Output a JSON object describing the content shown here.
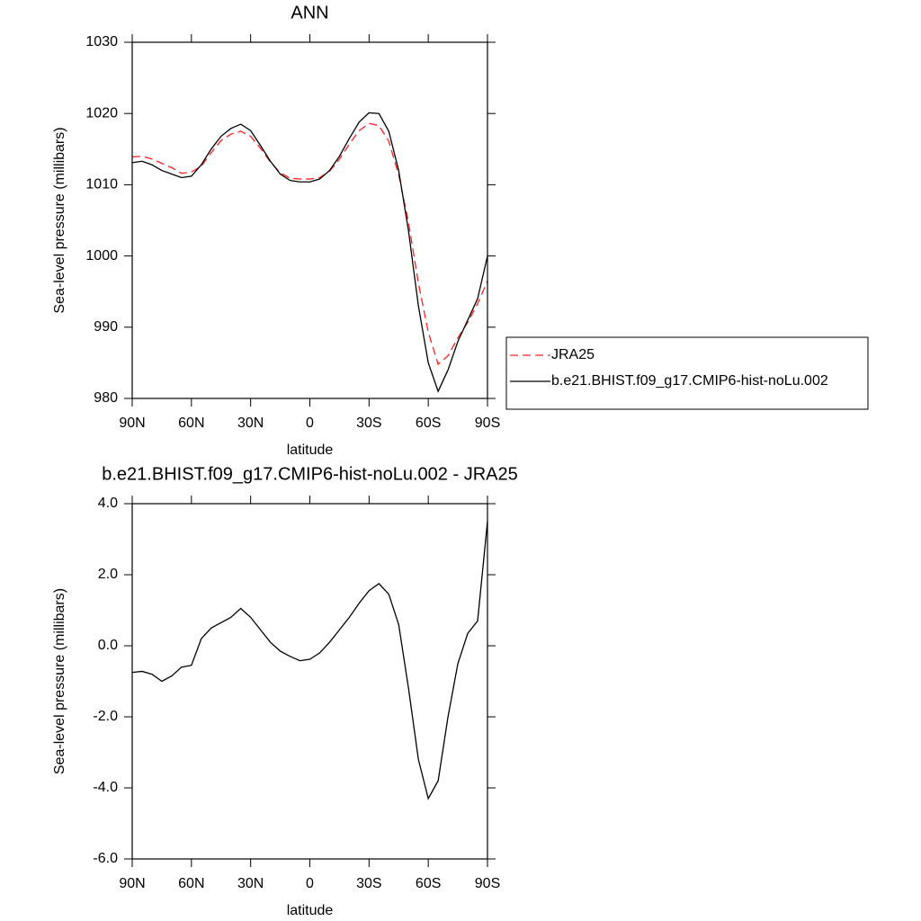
{
  "chart_data": [
    {
      "type": "line",
      "title": "ANN",
      "xlabel": "latitude",
      "ylabel": "Sea-level pressure (millibars)",
      "x": [
        90,
        85,
        80,
        75,
        70,
        65,
        60,
        55,
        50,
        45,
        40,
        35,
        30,
        25,
        20,
        15,
        10,
        5,
        0,
        -5,
        -10,
        -15,
        -20,
        -25,
        -30,
        -35,
        -40,
        -45,
        -50,
        -55,
        -60,
        -65,
        -70,
        -75,
        -80,
        -85,
        -90
      ],
      "xlim": [
        90,
        -90
      ],
      "xticks": [
        {
          "value": 90,
          "label": "90N"
        },
        {
          "value": 60,
          "label": "60N"
        },
        {
          "value": 30,
          "label": "30N"
        },
        0,
        {
          "value": -30,
          "label": "30S"
        },
        {
          "value": -60,
          "label": "60S"
        },
        {
          "value": -90,
          "label": "90S"
        }
      ],
      "ylim": [
        980,
        1030
      ],
      "yticks": [
        980,
        990,
        1000,
        1010,
        1020,
        1030
      ],
      "legend": "right",
      "series": [
        {
          "name": "JRA25",
          "color": "#ff2020",
          "dashed": true,
          "values": [
            1013.9,
            1014.0,
            1013.6,
            1013.0,
            1012.4,
            1011.6,
            1011.8,
            1012.6,
            1014.5,
            1016.2,
            1017.1,
            1017.5,
            1016.8,
            1015.1,
            1013.2,
            1011.7,
            1010.9,
            1010.8,
            1010.8,
            1011.0,
            1011.9,
            1013.6,
            1015.7,
            1017.6,
            1018.6,
            1018.3,
            1016.1,
            1011.4,
            1004.7,
            996.2,
            989.3,
            984.8,
            986.0,
            988.5,
            990.7,
            993.3,
            996.5
          ]
        },
        {
          "name": "b.e21.BHIST.f09_g17.CMIP6-hist-noLu.002",
          "color": "#000000",
          "dashed": false,
          "values": [
            1013.1,
            1013.3,
            1012.8,
            1012.0,
            1011.5,
            1011.0,
            1011.2,
            1012.8,
            1015.0,
            1016.8,
            1017.9,
            1018.5,
            1017.6,
            1015.5,
            1013.3,
            1011.5,
            1010.6,
            1010.4,
            1010.4,
            1010.8,
            1012.0,
            1014.0,
            1016.5,
            1018.8,
            1020.1,
            1020.0,
            1017.5,
            1012.0,
            1003.5,
            993.0,
            985.0,
            981.0,
            984.0,
            988.0,
            991.0,
            994.0,
            1000.0
          ]
        }
      ]
    },
    {
      "type": "line",
      "title": "b.e21.BHIST.f09_g17.CMIP6-hist-noLu.002 - JRA25",
      "xlabel": "latitude",
      "ylabel": "Sea-level pressure (millibars)",
      "x": [
        90,
        85,
        80,
        75,
        70,
        65,
        60,
        55,
        50,
        45,
        40,
        35,
        30,
        25,
        20,
        15,
        10,
        5,
        0,
        -5,
        -10,
        -15,
        -20,
        -25,
        -30,
        -35,
        -40,
        -45,
        -50,
        -55,
        -60,
        -65,
        -70,
        -75,
        -80,
        -85,
        -90
      ],
      "xlim": [
        90,
        -90
      ],
      "xticks": [
        {
          "value": 90,
          "label": "90N"
        },
        {
          "value": 60,
          "label": "60N"
        },
        {
          "value": 30,
          "label": "30N"
        },
        0,
        {
          "value": -30,
          "label": "30S"
        },
        {
          "value": -60,
          "label": "60S"
        },
        {
          "value": -90,
          "label": "90S"
        }
      ],
      "ylim": [
        -6,
        4
      ],
      "yticks": [
        {
          "value": -6,
          "label": "-6.0"
        },
        {
          "value": -4,
          "label": "-4.0"
        },
        {
          "value": -2,
          "label": "-2.0"
        },
        {
          "value": 0,
          "label": "0.0"
        },
        {
          "value": 2,
          "label": "2.0"
        },
        {
          "value": 4,
          "label": "4.0"
        }
      ],
      "color": "#000000",
      "values": [
        -0.75,
        -0.72,
        -0.8,
        -1.0,
        -0.85,
        -0.6,
        -0.55,
        0.2,
        0.5,
        0.65,
        0.8,
        1.05,
        0.8,
        0.45,
        0.1,
        -0.15,
        -0.3,
        -0.42,
        -0.38,
        -0.2,
        0.1,
        0.45,
        0.8,
        1.2,
        1.55,
        1.75,
        1.45,
        0.6,
        -1.2,
        -3.2,
        -4.3,
        -3.8,
        -2.0,
        -0.5,
        0.35,
        0.7,
        3.5
      ]
    }
  ]
}
